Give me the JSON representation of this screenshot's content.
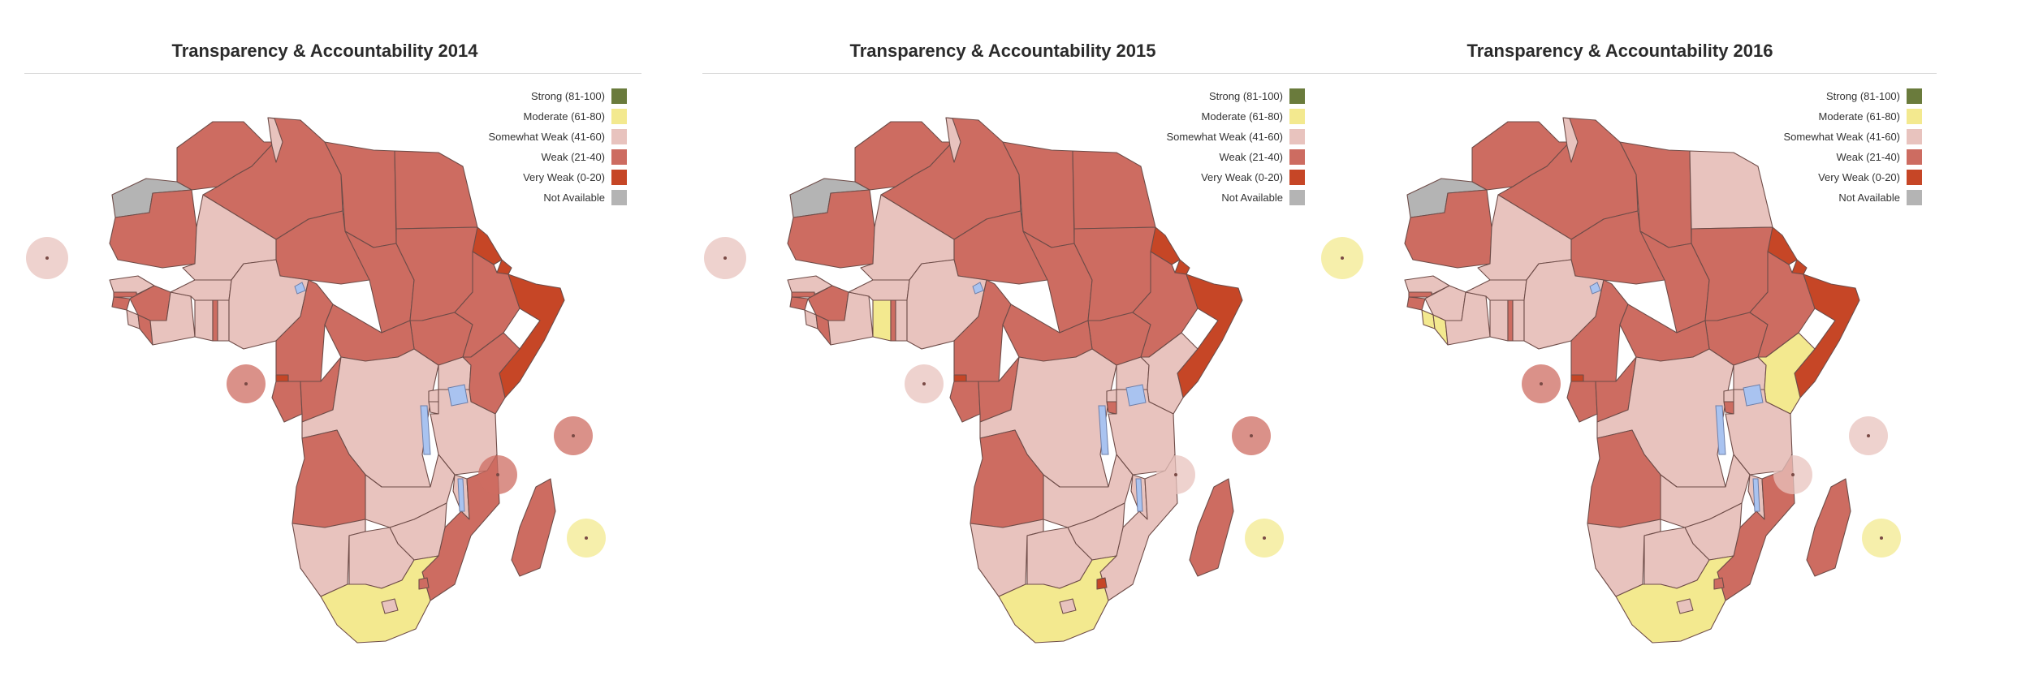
{
  "legend": [
    {
      "key": "strong",
      "label": "Strong (81-100)",
      "color": "#6a7b3c"
    },
    {
      "key": "moderate",
      "label": "Moderate (61-80)",
      "color": "#f3e98f"
    },
    {
      "key": "somewhat",
      "label": "Somewhat Weak (41-60)",
      "color": "#e8c3be"
    },
    {
      "key": "weak",
      "label": "Weak (21-40)",
      "color": "#cd6c61"
    },
    {
      "key": "very",
      "label": "Very Weak (0-20)",
      "color": "#c64626"
    },
    {
      "key": "na",
      "label": "Not Available",
      "color": "#b4b4b4"
    }
  ],
  "maps": [
    {
      "title": "Transparency & Accountability 2014",
      "regions": {
        "morocco": "weak",
        "algeria": "weak",
        "tunisia": "somewhat",
        "libya": "weak",
        "egypt": "weak",
        "western_sahara": "na",
        "mauritania": "weak",
        "mali": "somewhat",
        "niger": "weak",
        "chad": "weak",
        "sudan": "weak",
        "south_sudan": "weak",
        "eritrea": "very",
        "djibouti": "very",
        "ethiopia": "weak",
        "somalia": "very",
        "senegal": "somewhat",
        "gambia": "weak",
        "guinea_bissau": "weak",
        "guinea": "weak",
        "sierra_leone": "somewhat",
        "liberia": "weak",
        "cote_divoire": "somewhat",
        "burkina_faso": "somewhat",
        "ghana": "somewhat",
        "togo": "weak",
        "benin": "somewhat",
        "nigeria": "somewhat",
        "cameroon": "weak",
        "car": "weak",
        "eq_guinea": "very",
        "gabon": "weak",
        "congo": "weak",
        "drc": "somewhat",
        "uganda": "somewhat",
        "kenya": "weak",
        "rwanda": "somewhat",
        "burundi": "somewhat",
        "tanzania": "somewhat",
        "angola": "weak",
        "zambia": "somewhat",
        "malawi": "somewhat",
        "mozambique": "weak",
        "zimbabwe": "somewhat",
        "namibia": "somewhat",
        "botswana": "somewhat",
        "south_africa": "moderate",
        "lesotho": "somewhat",
        "swaziland": "weak",
        "madagascar": "weak"
      },
      "islands": {
        "cabo_verde": "somewhat",
        "sao_tome": "weak",
        "comoros": "weak",
        "seychelles": "weak",
        "mauritius": "moderate"
      }
    },
    {
      "title": "Transparency & Accountability 2015",
      "regions": {
        "morocco": "weak",
        "algeria": "weak",
        "tunisia": "somewhat",
        "libya": "weak",
        "egypt": "weak",
        "western_sahara": "na",
        "mauritania": "weak",
        "mali": "somewhat",
        "niger": "weak",
        "chad": "weak",
        "sudan": "weak",
        "south_sudan": "weak",
        "eritrea": "very",
        "djibouti": "very",
        "ethiopia": "weak",
        "somalia": "very",
        "senegal": "somewhat",
        "gambia": "weak",
        "guinea_bissau": "weak",
        "guinea": "weak",
        "sierra_leone": "somewhat",
        "liberia": "weak",
        "cote_divoire": "somewhat",
        "burkina_faso": "somewhat",
        "ghana": "moderate",
        "togo": "weak",
        "benin": "somewhat",
        "nigeria": "somewhat",
        "cameroon": "weak",
        "car": "weak",
        "eq_guinea": "very",
        "gabon": "weak",
        "congo": "weak",
        "drc": "somewhat",
        "uganda": "somewhat",
        "kenya": "somewhat",
        "rwanda": "somewhat",
        "burundi": "weak",
        "tanzania": "somewhat",
        "angola": "weak",
        "zambia": "somewhat",
        "malawi": "somewhat",
        "mozambique": "somewhat",
        "zimbabwe": "somewhat",
        "namibia": "somewhat",
        "botswana": "somewhat",
        "south_africa": "moderate",
        "lesotho": "somewhat",
        "swaziland": "very",
        "madagascar": "weak"
      },
      "islands": {
        "cabo_verde": "somewhat",
        "sao_tome": "somewhat",
        "comoros": "somewhat",
        "seychelles": "weak",
        "mauritius": "moderate"
      }
    },
    {
      "title": "Transparency & Accountability 2016",
      "regions": {
        "morocco": "weak",
        "algeria": "weak",
        "tunisia": "somewhat",
        "libya": "weak",
        "egypt": "somewhat",
        "western_sahara": "na",
        "mauritania": "weak",
        "mali": "somewhat",
        "niger": "weak",
        "chad": "weak",
        "sudan": "weak",
        "south_sudan": "weak",
        "eritrea": "very",
        "djibouti": "very",
        "ethiopia": "weak",
        "somalia": "very",
        "senegal": "somewhat",
        "gambia": "weak",
        "guinea_bissau": "weak",
        "guinea": "somewhat",
        "sierra_leone": "moderate",
        "liberia": "moderate",
        "cote_divoire": "somewhat",
        "burkina_faso": "somewhat",
        "ghana": "somewhat",
        "togo": "weak",
        "benin": "somewhat",
        "nigeria": "somewhat",
        "cameroon": "weak",
        "car": "weak",
        "eq_guinea": "very",
        "gabon": "weak",
        "congo": "weak",
        "drc": "somewhat",
        "uganda": "somewhat",
        "kenya": "moderate",
        "rwanda": "somewhat",
        "burundi": "weak",
        "tanzania": "somewhat",
        "angola": "weak",
        "zambia": "somewhat",
        "malawi": "somewhat",
        "mozambique": "weak",
        "zimbabwe": "somewhat",
        "namibia": "somewhat",
        "botswana": "somewhat",
        "south_africa": "moderate",
        "lesotho": "somewhat",
        "swaziland": "weak",
        "madagascar": "weak"
      },
      "islands": {
        "cabo_verde": "moderate",
        "sao_tome": "weak",
        "comoros": "somewhat",
        "seychelles": "somewhat",
        "mauritius": "moderate"
      }
    }
  ]
}
